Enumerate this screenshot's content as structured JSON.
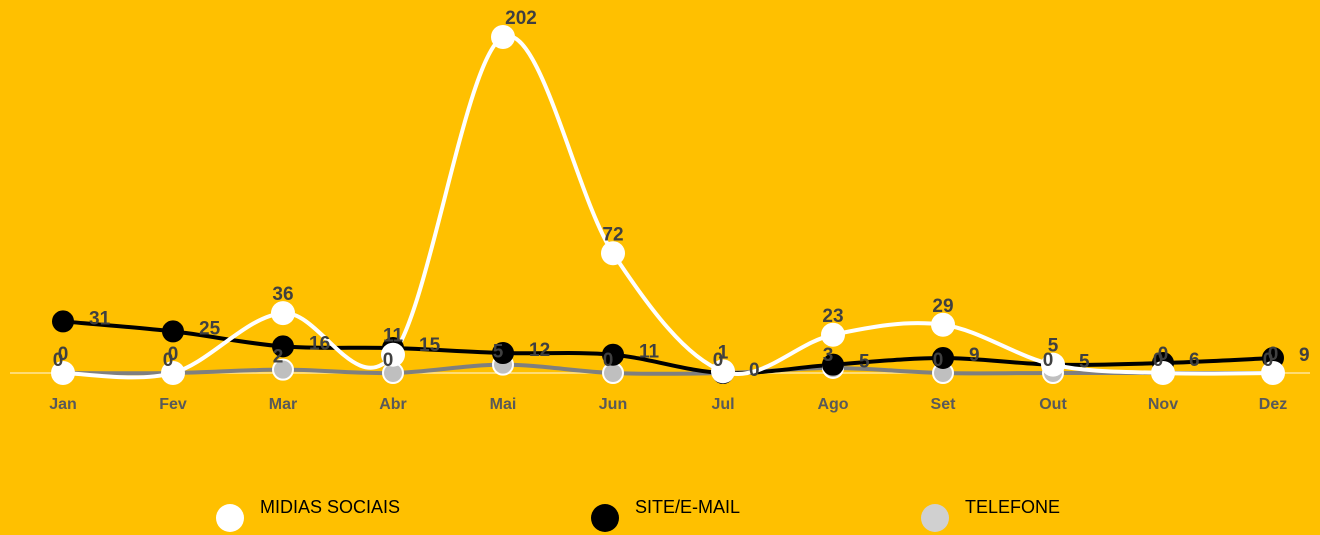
{
  "chart_data": {
    "type": "line",
    "categories": [
      "Jan",
      "Fev",
      "Mar",
      "Abr",
      "Mai",
      "Jun",
      "Jul",
      "Ago",
      "Set",
      "Out",
      "Nov",
      "Dez"
    ],
    "series": [
      {
        "name": "MIDIAS SOCIAIS",
        "color": "#FFFFFF",
        "values": [
          0,
          0,
          36,
          11,
          202,
          72,
          1,
          23,
          29,
          5,
          0,
          0
        ]
      },
      {
        "name": "SITE/E-MAIL",
        "color": "#000000",
        "values": [
          31,
          25,
          16,
          15,
          12,
          11,
          0,
          5,
          9,
          5,
          6,
          9
        ]
      },
      {
        "name": "TELEFONE",
        "color": "#A6A6A6",
        "values": [
          0,
          0,
          2,
          0,
          5,
          0,
          0,
          3,
          0,
          0,
          0,
          0
        ]
      }
    ],
    "ylim": [
      0,
      202
    ],
    "smooth": true
  }
}
